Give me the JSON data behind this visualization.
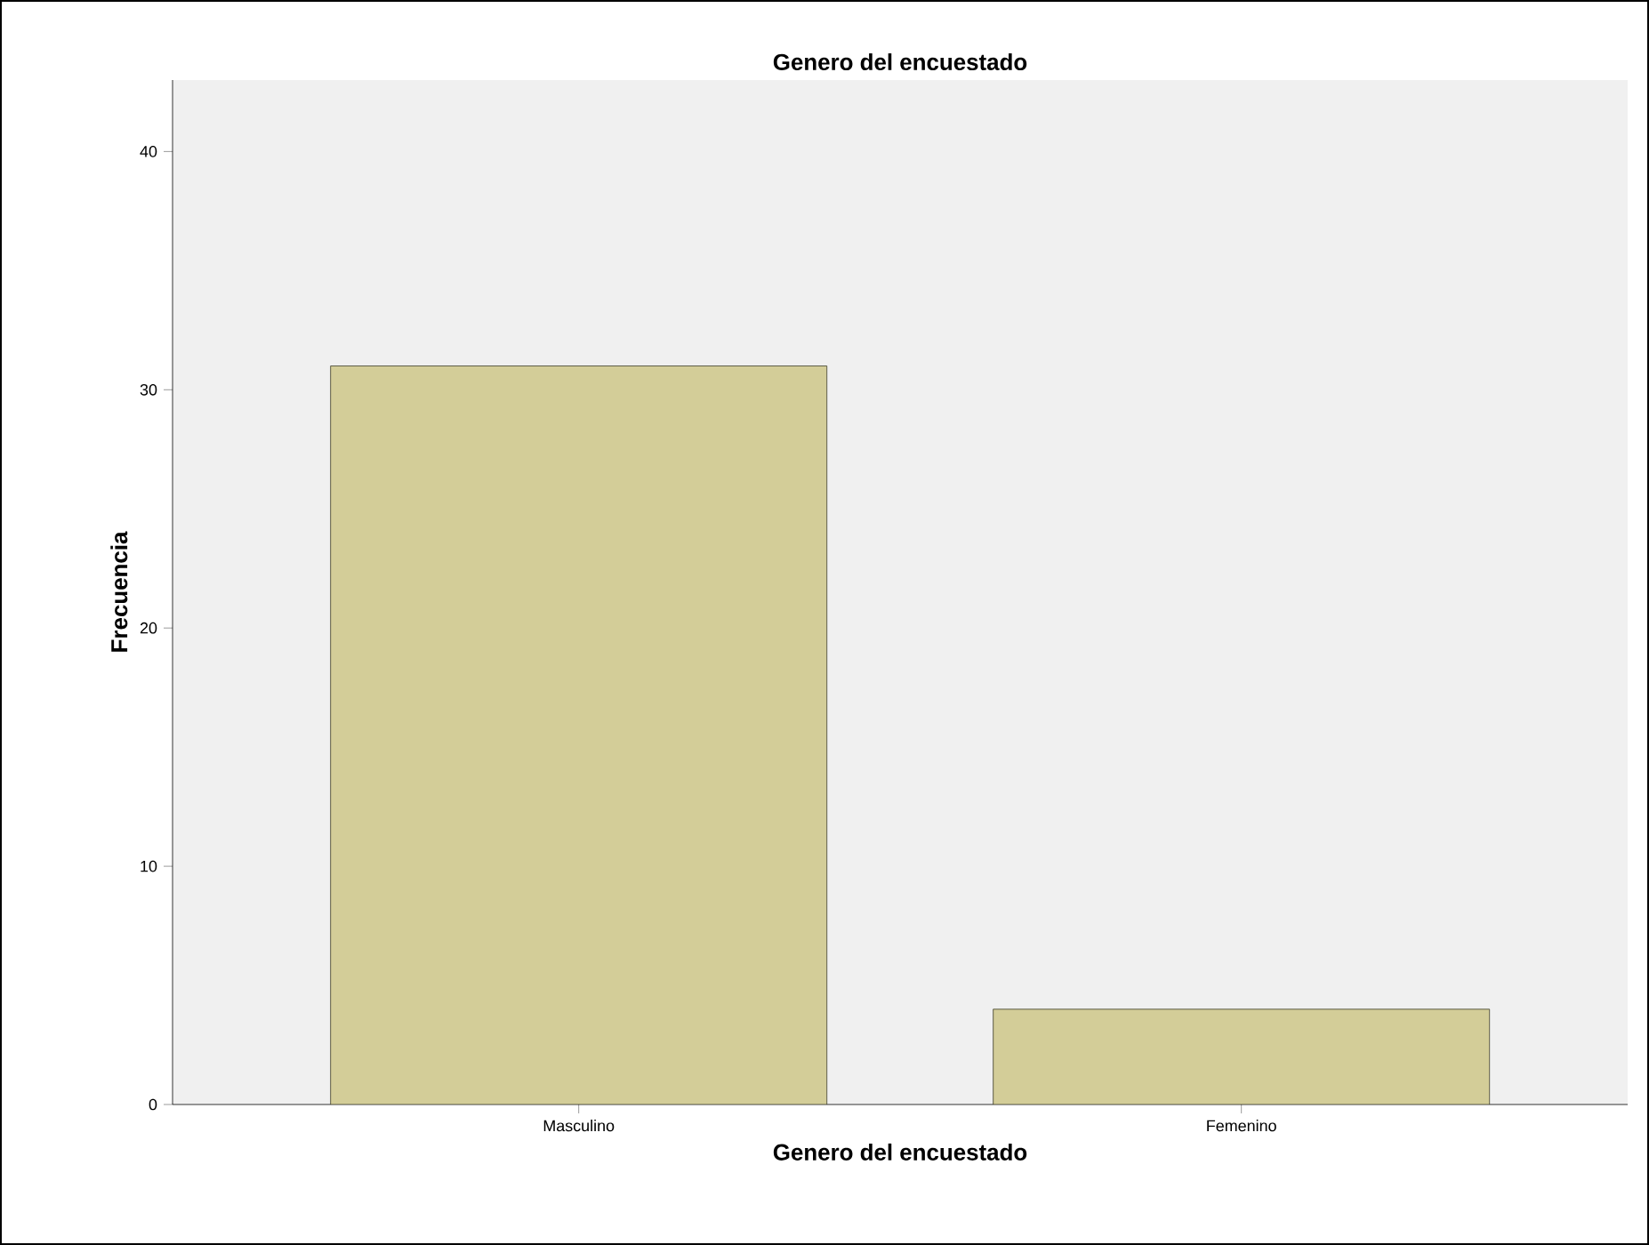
{
  "chart_data": {
    "type": "bar",
    "title": "Genero del encuestado",
    "xlabel": "Genero del encuestado",
    "ylabel": "Frecuencia",
    "categories": [
      "Masculino",
      "Femenino"
    ],
    "values": [
      31,
      4
    ],
    "color": "#d3cd98",
    "ylim": [
      0,
      43
    ],
    "yticks": [
      0,
      10,
      20,
      30,
      40
    ],
    "grid": false
  }
}
